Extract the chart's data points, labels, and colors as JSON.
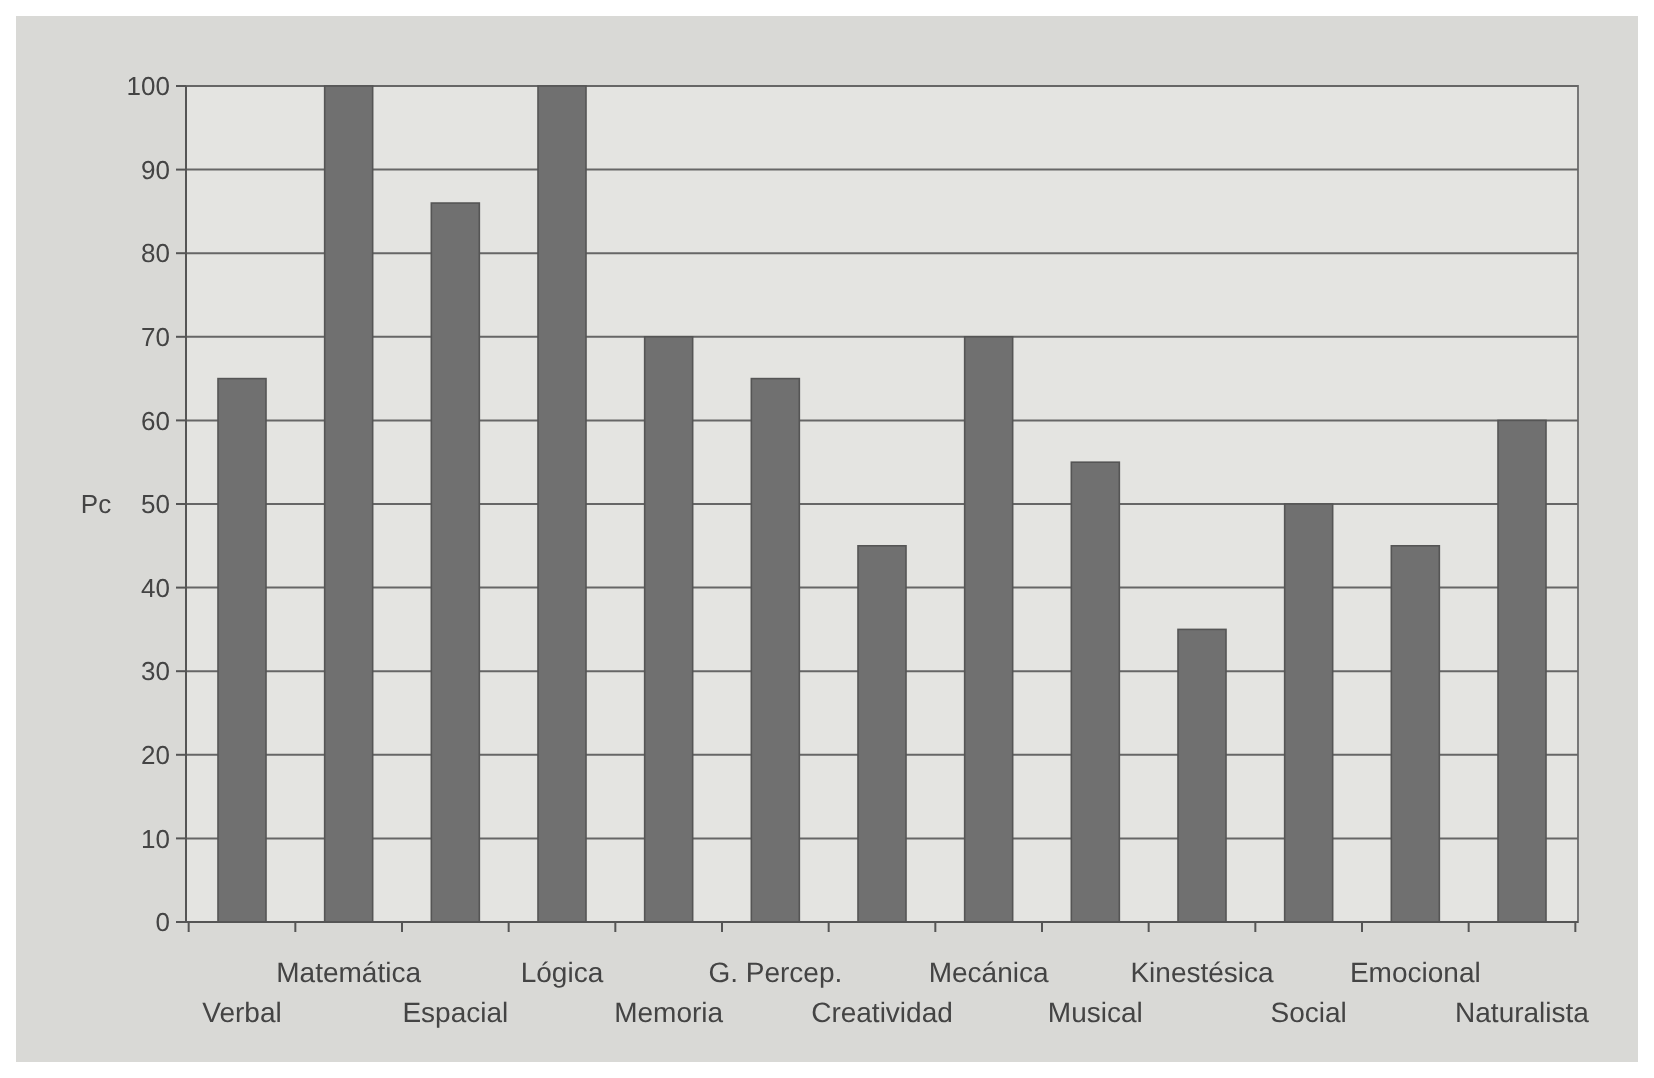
{
  "chart_data": {
    "type": "bar",
    "ylabel": "Pc",
    "categories": [
      "Verbal",
      "Matemática",
      "Espacial",
      "Lógica",
      "Memoria",
      "G. Percep.",
      "Creatividad",
      "Mecánica",
      "Musical",
      "Kinestésica",
      "Social",
      "Emocional",
      "Naturalista"
    ],
    "values": [
      65,
      100,
      86,
      100,
      70,
      65,
      45,
      70,
      55,
      35,
      50,
      45,
      60
    ],
    "color": "#707070",
    "ylim": [
      0,
      100
    ],
    "yticks": [
      0,
      10,
      20,
      30,
      40,
      50,
      60,
      70,
      80,
      90,
      100
    ],
    "grid": "y"
  }
}
